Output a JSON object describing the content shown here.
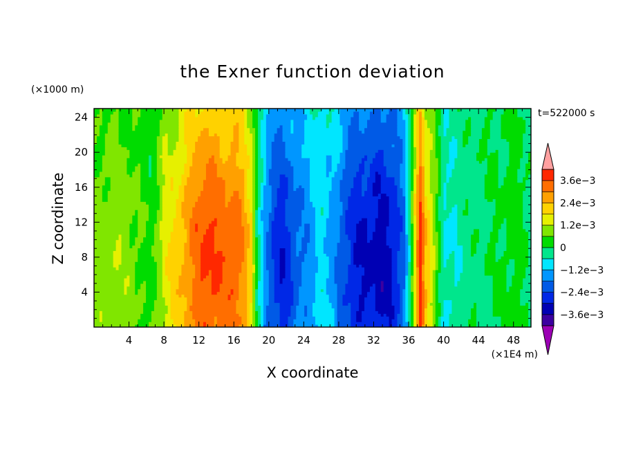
{
  "chart_data": {
    "type": "heatmap",
    "title": "the Exner function deviation",
    "xlabel": "X coordinate",
    "ylabel": "Z coordinate",
    "x_unit": "(×1E4 m)",
    "y_unit": "(×1000 m)",
    "time_label": "t=522000 s",
    "xlim": [
      0,
      50
    ],
    "ylim": [
      0,
      25
    ],
    "x_ticks": [
      4,
      8,
      12,
      16,
      20,
      24,
      28,
      32,
      36,
      40,
      44,
      48
    ],
    "y_ticks": [
      4,
      8,
      12,
      16,
      20,
      24
    ],
    "colorbar": {
      "levels": [
        -0.0042,
        -0.0036,
        -0.003,
        -0.0024,
        -0.0018,
        -0.0012,
        -0.0006,
        0,
        0.0006,
        0.0012,
        0.0018,
        0.0024,
        0.003,
        0.0036,
        0.0042
      ],
      "colors": [
        "#9b00b4",
        "#3c00a0",
        "#0000b4",
        "#0028e6",
        "#005ae6",
        "#0096ff",
        "#00e6ff",
        "#00e68c",
        "#00dc00",
        "#80e600",
        "#e6f000",
        "#ffd200",
        "#ffa000",
        "#ff6e00",
        "#ff2800",
        "#ffa0a0"
      ],
      "tick_labels": [
        {
          "value": 0.0036,
          "label": "3.6e−3"
        },
        {
          "value": 0.0024,
          "label": "2.4e−3"
        },
        {
          "value": 0.0012,
          "label": "1.2e−3"
        },
        {
          "value": 0,
          "label": "0"
        },
        {
          "value": -0.0012,
          "label": "−1.2e−3"
        },
        {
          "value": -0.0024,
          "label": "−2.4e−3"
        },
        {
          "value": -0.0036,
          "label": "−3.6e−3"
        }
      ]
    },
    "field_profile": {
      "x": [
        0,
        2,
        4,
        5.5,
        6.5,
        8,
        9,
        10,
        11,
        12,
        13,
        14,
        15,
        16,
        17,
        18,
        18.5,
        19.5,
        20.5,
        21.5,
        22.5,
        24,
        26,
        27.5,
        28.5,
        30,
        31.5,
        33,
        34.5,
        35.5,
        36.5,
        37.3,
        38,
        39,
        40,
        42,
        44,
        46,
        48,
        50
      ],
      "value": [
        0.0006,
        0.0008,
        0.0007,
        0.0004,
        0.0002,
        0.0011,
        0.0014,
        0.0018,
        0.0022,
        0.0026,
        0.0029,
        0.0027,
        0.0025,
        0.0027,
        0.0022,
        0.0014,
        0.0003,
        -0.0012,
        -0.0019,
        -0.0022,
        -0.0018,
        -0.0013,
        -0.0007,
        -0.0011,
        -0.0017,
        -0.0022,
        -0.0024,
        -0.0025,
        -0.0022,
        -0.0014,
        0.0006,
        0.003,
        0.0017,
        0.0008,
        -0.0006,
        -0.0003,
        -0.0001,
        0,
        0.0002,
        -0.0001
      ],
      "vertical_shape": [
        {
          "z": 0,
          "factor": 1.2
        },
        {
          "z": 4,
          "factor": 1.3
        },
        {
          "z": 8,
          "factor": 1.35
        },
        {
          "z": 12,
          "factor": 1.3
        },
        {
          "z": 16,
          "factor": 1.15
        },
        {
          "z": 20,
          "factor": 0.95
        },
        {
          "z": 25,
          "factor": 0.75
        }
      ]
    }
  }
}
